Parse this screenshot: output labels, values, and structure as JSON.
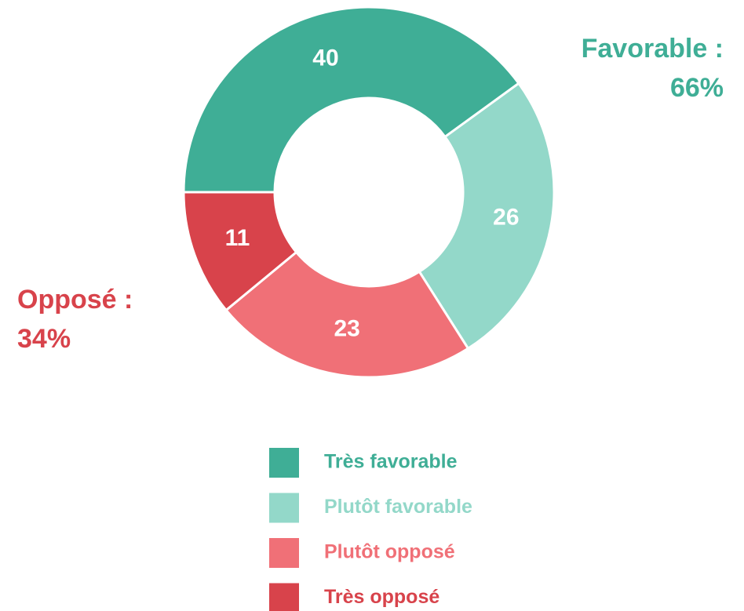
{
  "chart_data": {
    "type": "donut",
    "categories": [
      "Très favorable",
      "Plutôt favorable",
      "Plutôt opposé",
      "Très opposé"
    ],
    "values": [
      40,
      26,
      23,
      11
    ],
    "colors": [
      "#3fae96",
      "#93d8c9",
      "#f07077",
      "#d8434b"
    ],
    "annotations": [
      {
        "lines": [
          "Favorable :",
          "66%"
        ],
        "color": "#3fae96"
      },
      {
        "lines": [
          "Opposé :",
          "34%"
        ],
        "color": "#d8434b"
      }
    ]
  }
}
